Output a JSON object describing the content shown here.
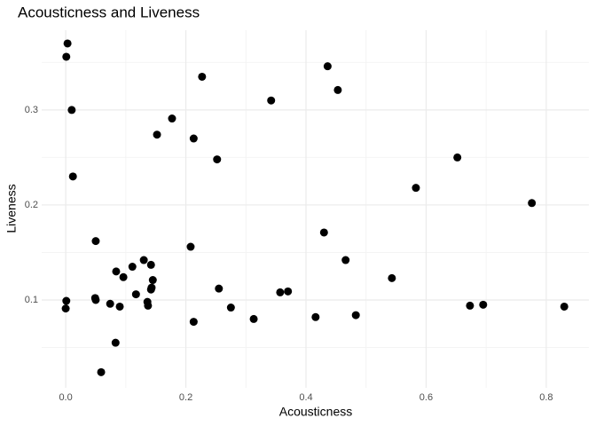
{
  "chart_data": {
    "type": "scatter",
    "title": "Acousticness and Liveness",
    "x_label": "Acousticness",
    "y_label": "Liveness",
    "x": [
      0.003,
      0.001,
      0.01,
      0.012,
      0.001,
      0.0,
      0.05,
      0.049,
      0.05,
      0.059,
      0.074,
      0.084,
      0.096,
      0.083,
      0.09,
      0.111,
      0.117,
      0.13,
      0.142,
      0.145,
      0.142,
      0.143,
      0.136,
      0.137,
      0.152,
      0.177,
      0.227,
      0.213,
      0.208,
      0.213,
      0.252,
      0.255,
      0.275,
      0.313,
      0.342,
      0.357,
      0.37,
      0.416,
      0.436,
      0.43,
      0.453,
      0.466,
      0.483,
      0.543,
      0.583,
      0.652,
      0.673,
      0.695,
      0.776,
      0.83
    ],
    "values": [
      0.37,
      0.356,
      0.3,
      0.23,
      0.099,
      0.091,
      0.162,
      0.102,
      0.1,
      0.024,
      0.096,
      0.13,
      0.124,
      0.055,
      0.093,
      0.135,
      0.106,
      0.142,
      0.137,
      0.121,
      0.111,
      0.113,
      0.098,
      0.094,
      0.274,
      0.291,
      0.335,
      0.27,
      0.156,
      0.077,
      0.248,
      0.112,
      0.092,
      0.08,
      0.31,
      0.108,
      0.109,
      0.082,
      0.346,
      0.171,
      0.321,
      0.142,
      0.084,
      0.123,
      0.218,
      0.25,
      0.094,
      0.095,
      0.202,
      0.093
    ],
    "color": "#000000",
    "xlim": [
      -0.04,
      0.871
    ],
    "ylim": [
      0.0075,
      0.384
    ],
    "xticks": [
      {
        "value": 0,
        "label": "0.0"
      },
      0.2,
      0.4,
      0.6,
      0.8
    ],
    "yticks": [
      0.1,
      0.2,
      0.3
    ],
    "x_minor_grid": [
      0.1,
      0.3,
      0.5,
      0.7
    ],
    "y_minor_grid": [
      0.05,
      0.15,
      0.25,
      0.35
    ],
    "grid": true
  }
}
